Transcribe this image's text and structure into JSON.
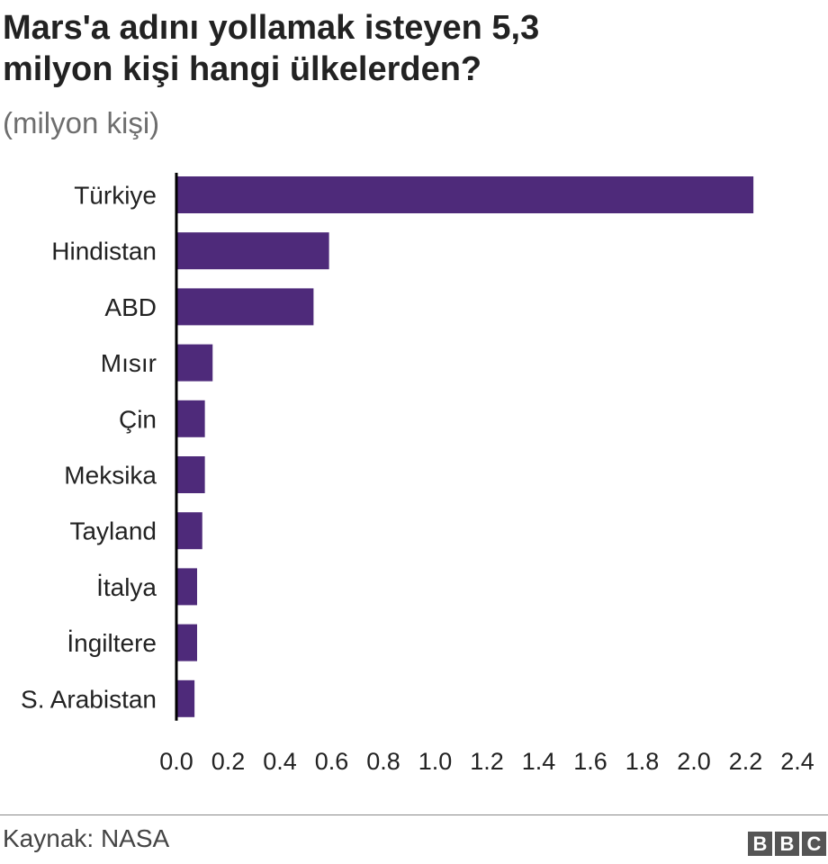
{
  "title_lines": [
    "Mars'a adını yollamak isteyen 5,3",
    "milyon kişi hangi ülkelerden?"
  ],
  "subtitle": "(milyon kişi)",
  "source": "Kaynak: NASA",
  "logo": [
    "B",
    "B",
    "C"
  ],
  "colors": {
    "bar": "#4e2a7a",
    "axis": "#000000",
    "text": "#222222"
  },
  "chart_data": {
    "type": "bar",
    "orientation": "horizontal",
    "categories": [
      "Türkiye",
      "Hindistan",
      "ABD",
      "Mısır",
      "Çin",
      "Meksika",
      "Tayland",
      "İtalya",
      "İngiltere",
      "S. Arabistan"
    ],
    "values": [
      2.23,
      0.59,
      0.53,
      0.14,
      0.11,
      0.11,
      0.1,
      0.08,
      0.08,
      0.07
    ],
    "xlim": [
      0,
      2.4
    ],
    "xticks": [
      "0.0",
      "0.2",
      "0.4",
      "0.6",
      "0.8",
      "1.0",
      "1.2",
      "1.4",
      "1.6",
      "1.8",
      "2.0",
      "2.2",
      "2.4"
    ],
    "grid": false
  }
}
